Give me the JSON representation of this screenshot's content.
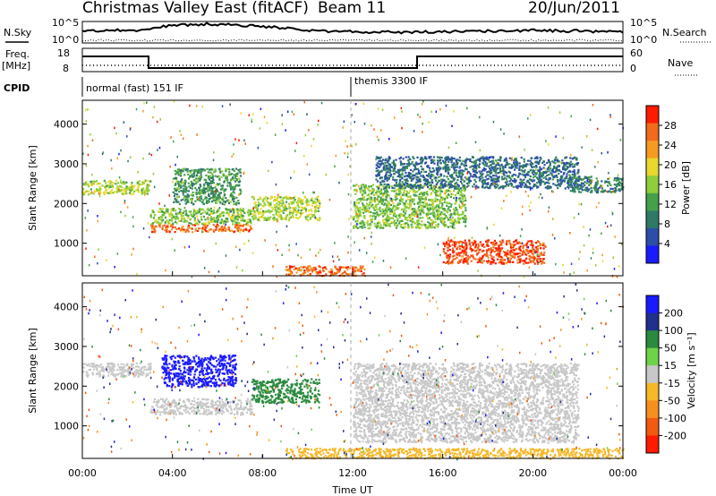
{
  "header": {
    "title": "Christmas Valley East (fitACF)",
    "beam": "Beam 11",
    "date": "20/Jun/2011"
  },
  "top_panels": {
    "nsky_label": "N.Sky",
    "nsky_ticks": [
      "10^5",
      "10^0"
    ],
    "nsearch_label": "N.Search",
    "freq_label": "Freq.",
    "freq_unit": "[MHz]",
    "freq_ticks": [
      "18",
      "8"
    ],
    "nave_ticks": [
      "60",
      "0"
    ],
    "nave_label": "Nave",
    "cpid_label": "CPID",
    "cpid_modes": [
      "normal (fast) 151 IF",
      "themis 3300 IF"
    ]
  },
  "colors": {
    "power_scale": [
      "#1a1aff",
      "#2d4ea8",
      "#2f7a66",
      "#45a04a",
      "#8fce3a",
      "#e8d82c",
      "#f59a22",
      "#f26a1c",
      "#ff1a00"
    ],
    "velocity_scale": [
      "#1a1aff",
      "#20308c",
      "#2a8a3e",
      "#6fd34a",
      "#c8c8c8",
      "#f5b82a",
      "#f59020",
      "#f25a10",
      "#ff1a00"
    ]
  },
  "chart_data": [
    {
      "type": "heatmap",
      "panel": "power",
      "ylabel": "Slant Range [km]",
      "ylim": [
        180,
        4600
      ],
      "yticks": [
        "1000",
        "2000",
        "3000",
        "4000"
      ],
      "colorbar_label": "Power [dB]",
      "colorbar_ticks": [
        "4",
        "8",
        "12",
        "16",
        "20",
        "24",
        "28"
      ],
      "features": [
        {
          "t_start": 0.0,
          "t_end": 3.0,
          "range_low": 2250,
          "range_high": 2600,
          "level": 16
        },
        {
          "t_start": 3.0,
          "t_end": 7.5,
          "range_low": 1300,
          "range_high": 1500,
          "level": 26
        },
        {
          "t_start": 3.0,
          "t_end": 7.5,
          "range_low": 1500,
          "range_high": 1900,
          "level": 14
        },
        {
          "t_start": 4.0,
          "t_end": 7.0,
          "range_low": 2000,
          "range_high": 2900,
          "level": 10
        },
        {
          "t_start": 7.5,
          "t_end": 10.5,
          "range_low": 1600,
          "range_high": 2200,
          "level": 16
        },
        {
          "t_start": 12.0,
          "t_end": 17.0,
          "range_low": 1400,
          "range_high": 2500,
          "level": 14
        },
        {
          "t_start": 16.0,
          "t_end": 20.5,
          "range_low": 500,
          "range_high": 1100,
          "level": 28
        },
        {
          "t_start": 13.0,
          "t_end": 22.0,
          "range_low": 2400,
          "range_high": 3200,
          "level": 6
        },
        {
          "t_start": 21.5,
          "t_end": 24.0,
          "range_low": 2300,
          "range_high": 2700,
          "level": 8
        },
        {
          "t_start": 9.0,
          "t_end": 12.5,
          "range_low": 200,
          "range_high": 450,
          "level": 26
        }
      ]
    },
    {
      "type": "heatmap",
      "panel": "velocity",
      "ylabel": "Slant Range [km]",
      "xlabel": "Time UT",
      "ylim": [
        180,
        4600
      ],
      "yticks": [
        "1000",
        "2000",
        "3000",
        "4000"
      ],
      "xticks": [
        "00:00",
        "04:00",
        "08:00",
        "12:00",
        "16:00",
        "20:00",
        "00:00"
      ],
      "colorbar_label": "Velocity [m s⁻¹]",
      "colorbar_ticks": [
        "200",
        "100",
        "50",
        "15",
        "-15",
        "-50",
        "-100",
        "-200"
      ],
      "features": [
        {
          "t_start": 0.0,
          "t_end": 3.0,
          "range_low": 2250,
          "range_high": 2600,
          "velocity": 0
        },
        {
          "t_start": 3.0,
          "t_end": 7.5,
          "range_low": 1300,
          "range_high": 1700,
          "velocity": 0
        },
        {
          "t_start": 3.5,
          "t_end": 6.8,
          "range_low": 2000,
          "range_high": 2800,
          "velocity": 180
        },
        {
          "t_start": 7.5,
          "t_end": 10.5,
          "range_low": 1600,
          "range_high": 2200,
          "velocity": 60
        },
        {
          "t_start": 12.0,
          "t_end": 22.0,
          "range_low": 600,
          "range_high": 2600,
          "velocity": 0
        },
        {
          "t_start": 9.0,
          "t_end": 24.0,
          "range_low": 200,
          "range_high": 450,
          "velocity": -40
        }
      ]
    }
  ]
}
